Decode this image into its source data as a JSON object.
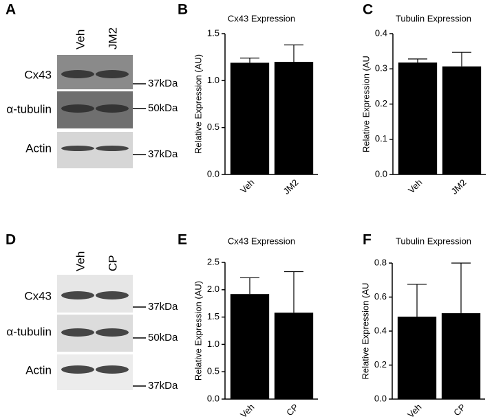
{
  "blots": [
    {
      "panel": "A",
      "lanes": [
        "Veh",
        "JM2"
      ],
      "rows": [
        "Cx43",
        "α-tubulin",
        "Actin"
      ],
      "markers": [
        "37kDa",
        "50kDa",
        "37kDa"
      ]
    },
    {
      "panel": "D",
      "lanes": [
        "Veh",
        "CP"
      ],
      "rows": [
        "Cx43",
        "α-tubulin",
        "Actin"
      ],
      "markers": [
        "37kDa",
        "50kDa",
        "37kDa"
      ]
    }
  ],
  "chart_data": [
    {
      "type": "bar",
      "panel": "B",
      "title": "Cx43 Expression",
      "y_label": "Relative Expression (AU)",
      "categories": [
        "Veh",
        "JM2"
      ],
      "values": [
        1.19,
        1.2
      ],
      "errors": [
        0.05,
        0.18
      ],
      "color": "#000000",
      "ylim": [
        0,
        1.5
      ],
      "yticks": [
        {
          "value": 0,
          "label": "0.0"
        },
        0.5,
        {
          "value": 1,
          "label": "1.0"
        },
        1.5
      ]
    },
    {
      "type": "bar",
      "panel": "C",
      "title": "Tubulin Expression",
      "y_label": "Relative Expression (AU",
      "categories": [
        "Veh",
        "JM2"
      ],
      "values": [
        0.318,
        0.307
      ],
      "errors": [
        0.01,
        0.04
      ],
      "color": "#000000",
      "ylim": [
        0,
        0.4
      ],
      "yticks": [
        {
          "value": 0,
          "label": "0.0"
        },
        0.1,
        0.2,
        0.3,
        0.4
      ]
    },
    {
      "type": "bar",
      "panel": "E",
      "title": "Cx43 Expression",
      "y_label": "Relative Expression (AU)",
      "categories": [
        "Veh",
        "CP"
      ],
      "values": [
        1.92,
        1.58
      ],
      "errors": [
        0.3,
        0.75
      ],
      "color": "#000000",
      "ylim": [
        0,
        2.5
      ],
      "yticks": [
        {
          "value": 0,
          "label": "0.0"
        },
        0.5,
        {
          "value": 1,
          "label": "1.0"
        },
        1.5,
        {
          "value": 2,
          "label": "2.0"
        },
        2.5
      ]
    },
    {
      "type": "bar",
      "panel": "F",
      "title": "Tubulin Expression",
      "y_label": "Relative Expression (AU",
      "categories": [
        "Veh",
        "CP"
      ],
      "values": [
        0.485,
        0.505
      ],
      "errors": [
        0.19,
        0.295
      ],
      "color": "#000000",
      "ylim": [
        0,
        0.8
      ],
      "yticks": [
        {
          "value": 0,
          "label": "0.0"
        },
        0.2,
        0.4,
        0.6,
        0.8
      ]
    }
  ]
}
